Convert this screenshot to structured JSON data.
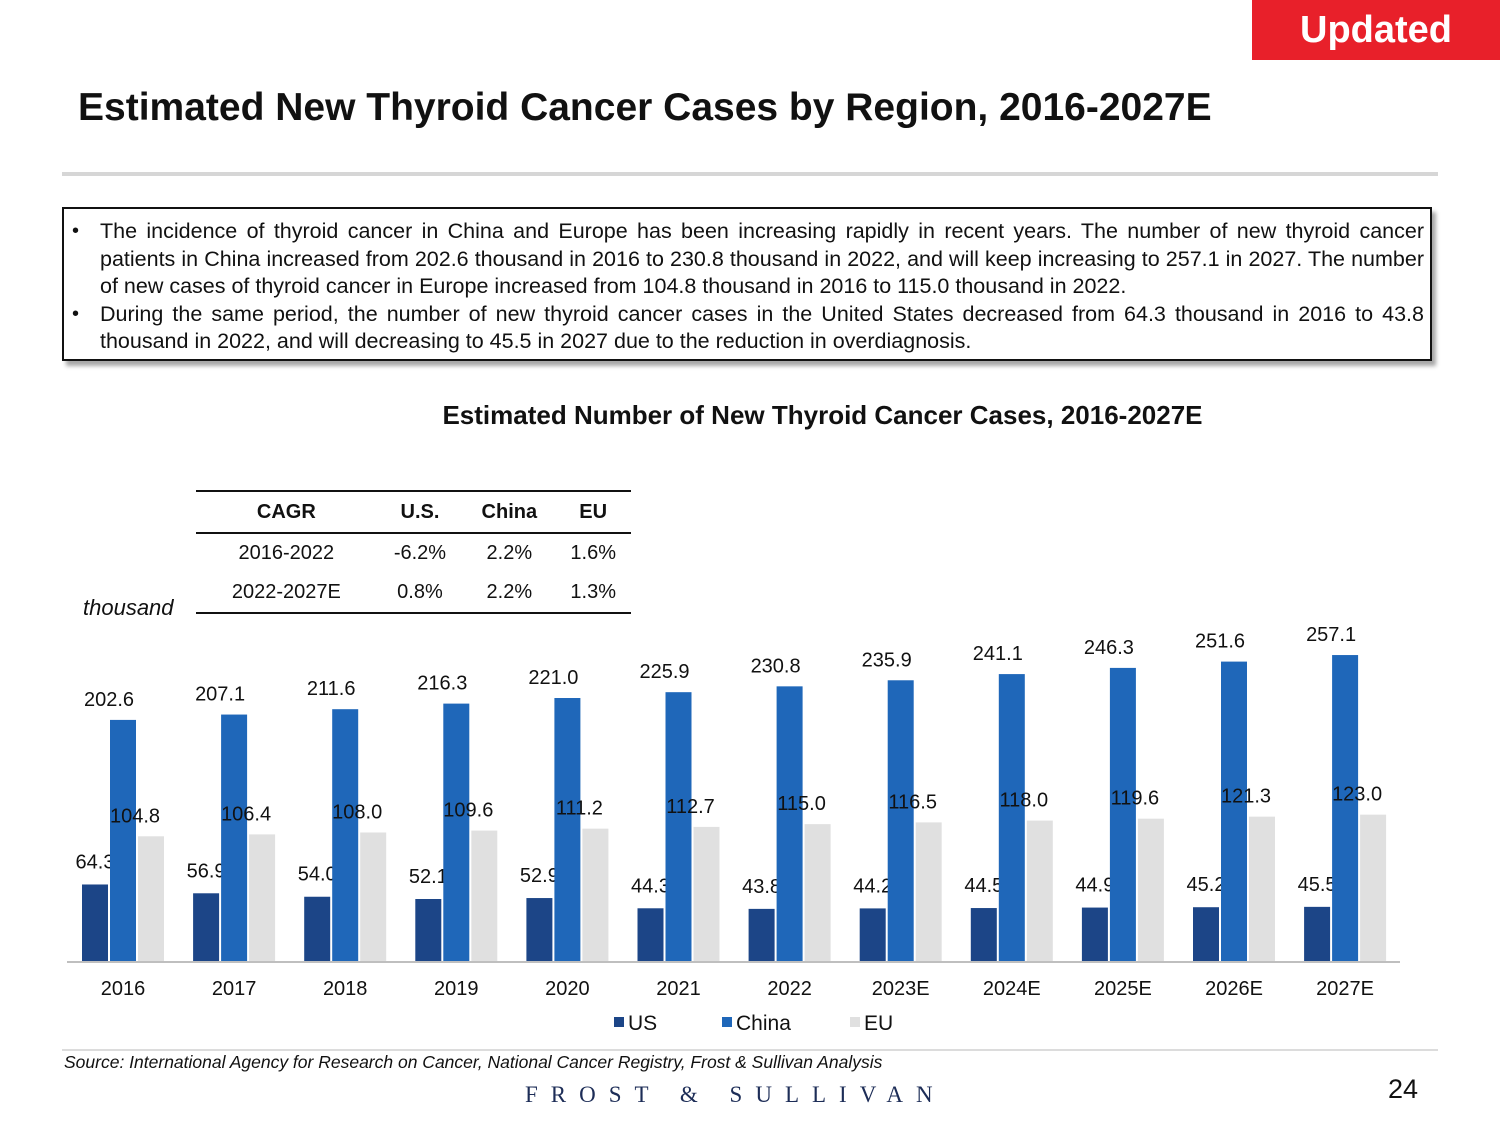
{
  "badge": "Updated",
  "main_title": "Estimated New Thyroid Cancer Cases by Region, 2016-2027E",
  "bullets": [
    "The incidence of thyroid cancer in China and Europe has been increasing rapidly in recent years. The number of new thyroid cancer patients in China increased from 202.6 thousand in 2016 to 230.8 thousand in 2022, and will keep increasing to 257.1 in 2027. The number of new cases of thyroid cancer in Europe increased from 104.8 thousand in 2016 to 115.0 thousand in 2022.",
    "During the same period, the number of new thyroid cancer cases in the United States decreased from 64.3 thousand in 2016 to 43.8 thousand in 2022, and will decreasing to 45.5 in 2027 due to the reduction in overdiagnosis."
  ],
  "cagr_table": {
    "headers": [
      "CAGR",
      "U.S.",
      "China",
      "EU"
    ],
    "rows": [
      [
        "2016-2022",
        "-6.2%",
        "2.2%",
        "1.6%"
      ],
      [
        "2022-2027E",
        "0.8%",
        "2.2%",
        "1.3%"
      ]
    ]
  },
  "chart_data": {
    "type": "bar",
    "title": "Estimated Number of New Thyroid Cancer Cases, 2016-2027E",
    "ylabel": "thousand",
    "categories": [
      "2016",
      "2017",
      "2018",
      "2019",
      "2020",
      "2021",
      "2022",
      "2023E",
      "2024E",
      "2025E",
      "2026E",
      "2027E"
    ],
    "series": [
      {
        "name": "US",
        "color": "#1c4587",
        "values": [
          64.3,
          56.9,
          54.0,
          52.1,
          52.9,
          44.3,
          43.8,
          44.2,
          44.5,
          44.9,
          45.2,
          45.5
        ]
      },
      {
        "name": "China",
        "color": "#1f67b9",
        "values": [
          202.6,
          207.1,
          211.6,
          216.3,
          221.0,
          225.9,
          230.8,
          235.9,
          241.1,
          246.3,
          251.6,
          257.1
        ]
      },
      {
        "name": "EU",
        "color": "#e0e0e0",
        "values": [
          104.8,
          106.4,
          108.0,
          109.6,
          111.2,
          112.7,
          115.0,
          116.5,
          118.0,
          119.6,
          121.3,
          123.0
        ]
      }
    ],
    "ylim": [
      0,
      260
    ],
    "legend": "bottom",
    "grid": false
  },
  "source": "Source: International Agency for Research on Cancer, National Cancer Registry, Frost & Sullivan Analysis",
  "brand": "FROST & SULLIVAN",
  "page_number": "24"
}
